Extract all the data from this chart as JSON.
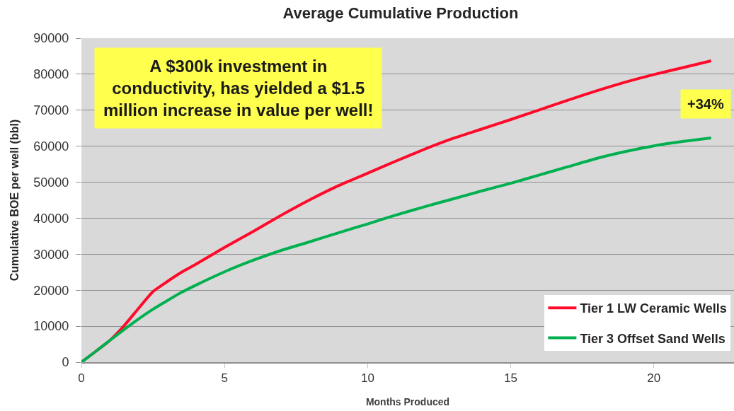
{
  "chart_data": {
    "type": "line",
    "title": "Average Cumulative Production",
    "xlabel": "Months Produced",
    "ylabel": "Cumulative BOE per well (bbl)",
    "x": [
      0,
      0.5,
      1,
      1.5,
      2,
      2.5,
      3,
      3.5,
      4,
      5,
      6,
      7,
      8,
      9,
      10,
      11,
      12,
      13,
      14,
      15,
      16,
      17,
      18,
      19,
      20,
      21,
      22
    ],
    "series": [
      {
        "name": "Tier 1 LW Ceramic Wells",
        "color": "#ff0a2a",
        "values": [
          0,
          3000,
          6100,
          10200,
          15000,
          19600,
          22400,
          25000,
          27200,
          31900,
          36300,
          40900,
          45200,
          49100,
          52500,
          55900,
          59200,
          62200,
          64800,
          67400,
          70100,
          72800,
          75400,
          77800,
          79900,
          81800,
          83700
        ]
      },
      {
        "name": "Tier 3 Offset Sand Wells",
        "color": "#00b050",
        "values": [
          0,
          3000,
          6100,
          9100,
          12000,
          14700,
          17100,
          19400,
          21400,
          25100,
          28300,
          31100,
          33500,
          36000,
          38400,
          40900,
          43200,
          45400,
          47600,
          49700,
          52000,
          54300,
          56600,
          58500,
          60100,
          61300,
          62300
        ]
      }
    ],
    "xlim": [
      0,
      22.8
    ],
    "xticks": [
      0,
      5,
      10,
      15,
      20
    ],
    "ylim": [
      0,
      90000
    ],
    "yticks": [
      0,
      10000,
      20000,
      30000,
      40000,
      50000,
      60000,
      70000,
      80000,
      90000
    ],
    "grid": "y",
    "legend": "bottom right",
    "marker": "none",
    "line_style": "solid",
    "annotations": [
      "A $300k investment in\nconductivity, has yielded a $1.5\nmillion increase in value per well!",
      "+34%"
    ]
  }
}
